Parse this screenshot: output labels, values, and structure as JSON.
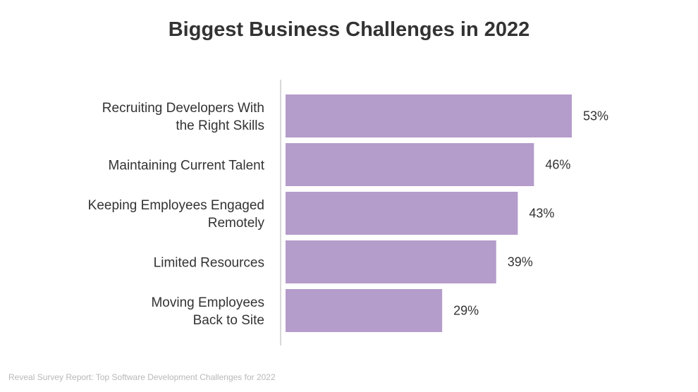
{
  "chart_data": {
    "type": "bar",
    "orientation": "horizontal",
    "title": "Biggest Business Challenges in 2022",
    "categories": [
      [
        "Recruiting Developers With",
        "the Right Skills"
      ],
      [
        "Maintaining Current Talent"
      ],
      [
        "Keeping Employees Engaged",
        "Remotely"
      ],
      [
        "Limited Resources"
      ],
      [
        "Moving Employees",
        "Back to Site"
      ]
    ],
    "values": [
      53,
      46,
      43,
      39,
      29
    ],
    "value_labels": [
      "53%",
      "46%",
      "43%",
      "39%",
      "29%"
    ],
    "unit": "%",
    "xlim": [
      0,
      53
    ],
    "grid": false,
    "legend": "none",
    "bar_color": "#b49ccb",
    "axis_color": "#cccccc"
  },
  "source": "Reveal Survey Report: Top Software Development Challenges for 2022"
}
